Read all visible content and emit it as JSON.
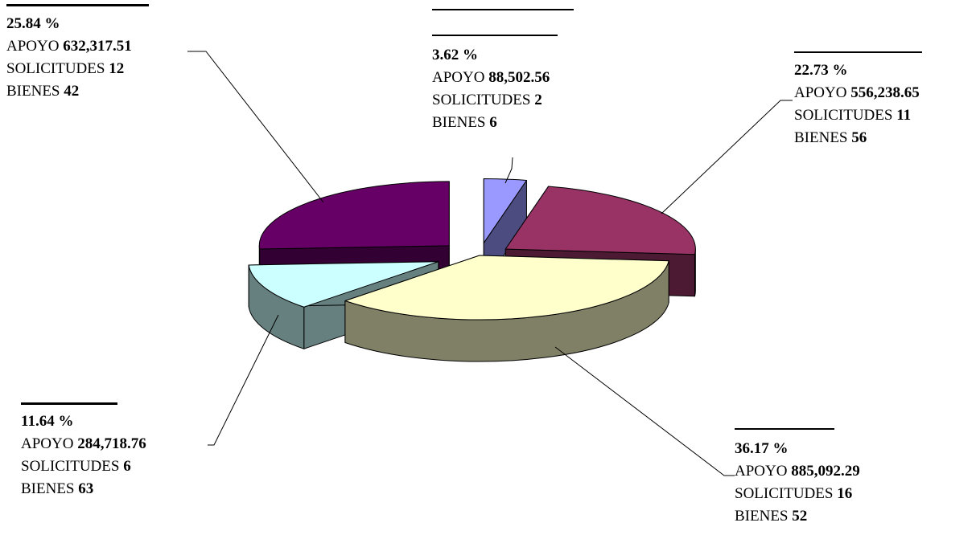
{
  "chart_data": {
    "type": "pie",
    "style": "3d-exploded",
    "legend": "none",
    "values": [
      3.62,
      22.73,
      36.17,
      11.64,
      25.84
    ],
    "slice_colors": [
      "#9999ff",
      "#993366",
      "#ffffcc",
      "#ccffff",
      "#660066"
    ],
    "side_colors": [
      "#4c4c80",
      "#4c1a33",
      "#808066",
      "#668080",
      "#330033"
    ],
    "callouts": [
      {
        "percent": "3.62 %",
        "apoyo_label": "APOYO",
        "apoyo": "88,502.56",
        "solicitudes_label": "SOLICITUDES",
        "solicitudes": "2",
        "bienes_label": "BIENES",
        "bienes": "6"
      },
      {
        "percent": "22.73 %",
        "apoyo_label": "APOYO",
        "apoyo": "556,238.65",
        "solicitudes_label": "SOLICITUDES",
        "solicitudes": "11",
        "bienes_label": "BIENES",
        "bienes": "56"
      },
      {
        "percent": "36.17 %",
        "apoyo_label": "APOYO",
        "apoyo": "885,092.29",
        "solicitudes_label": "SOLICITUDES",
        "solicitudes": "16",
        "bienes_label": "BIENES",
        "bienes": "52"
      },
      {
        "percent": "11.64 %",
        "apoyo_label": "APOYO",
        "apoyo": "284,718.76",
        "solicitudes_label": "SOLICITUDES",
        "solicitudes": "6",
        "bienes_label": "BIENES",
        "bienes": "63"
      },
      {
        "percent": "25.84 %",
        "apoyo_label": "APOYO",
        "apoyo": "632,317.51",
        "solicitudes_label": "SOLICITUDES",
        "solicitudes": "12",
        "bienes_label": "BIENES",
        "bienes": "42"
      }
    ]
  }
}
